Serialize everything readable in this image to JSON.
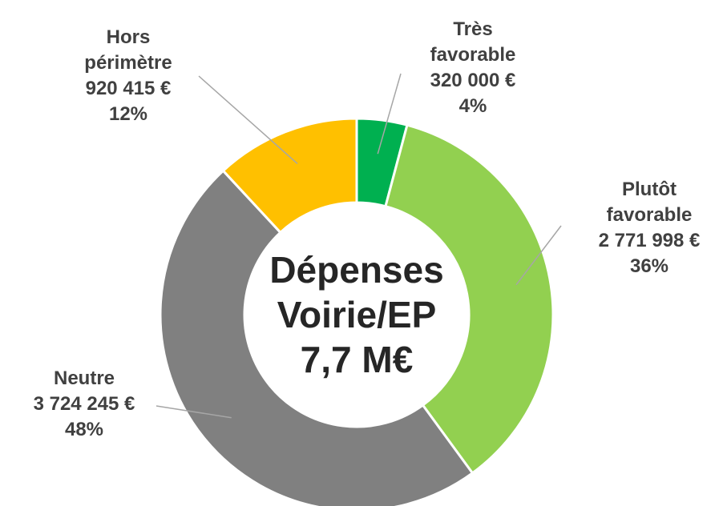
{
  "chart_data": {
    "type": "donut",
    "categories": [
      "Très favorable",
      "Plutôt favorable",
      "Neutre",
      "Hors périmètre"
    ],
    "values": [
      320000,
      2771998,
      3724245,
      920415
    ],
    "value_labels": [
      "320 000 €",
      "2 771 998 €",
      "3 724 245 €",
      "920 415 €"
    ],
    "percent_labels": [
      "4%",
      "36%",
      "48%",
      "12%"
    ],
    "colors": [
      "#00b050",
      "#92d050",
      "#808080",
      "#ffc000"
    ],
    "center_label": [
      "Dépenses",
      "Voirie/EP",
      "7,7 M€"
    ]
  }
}
